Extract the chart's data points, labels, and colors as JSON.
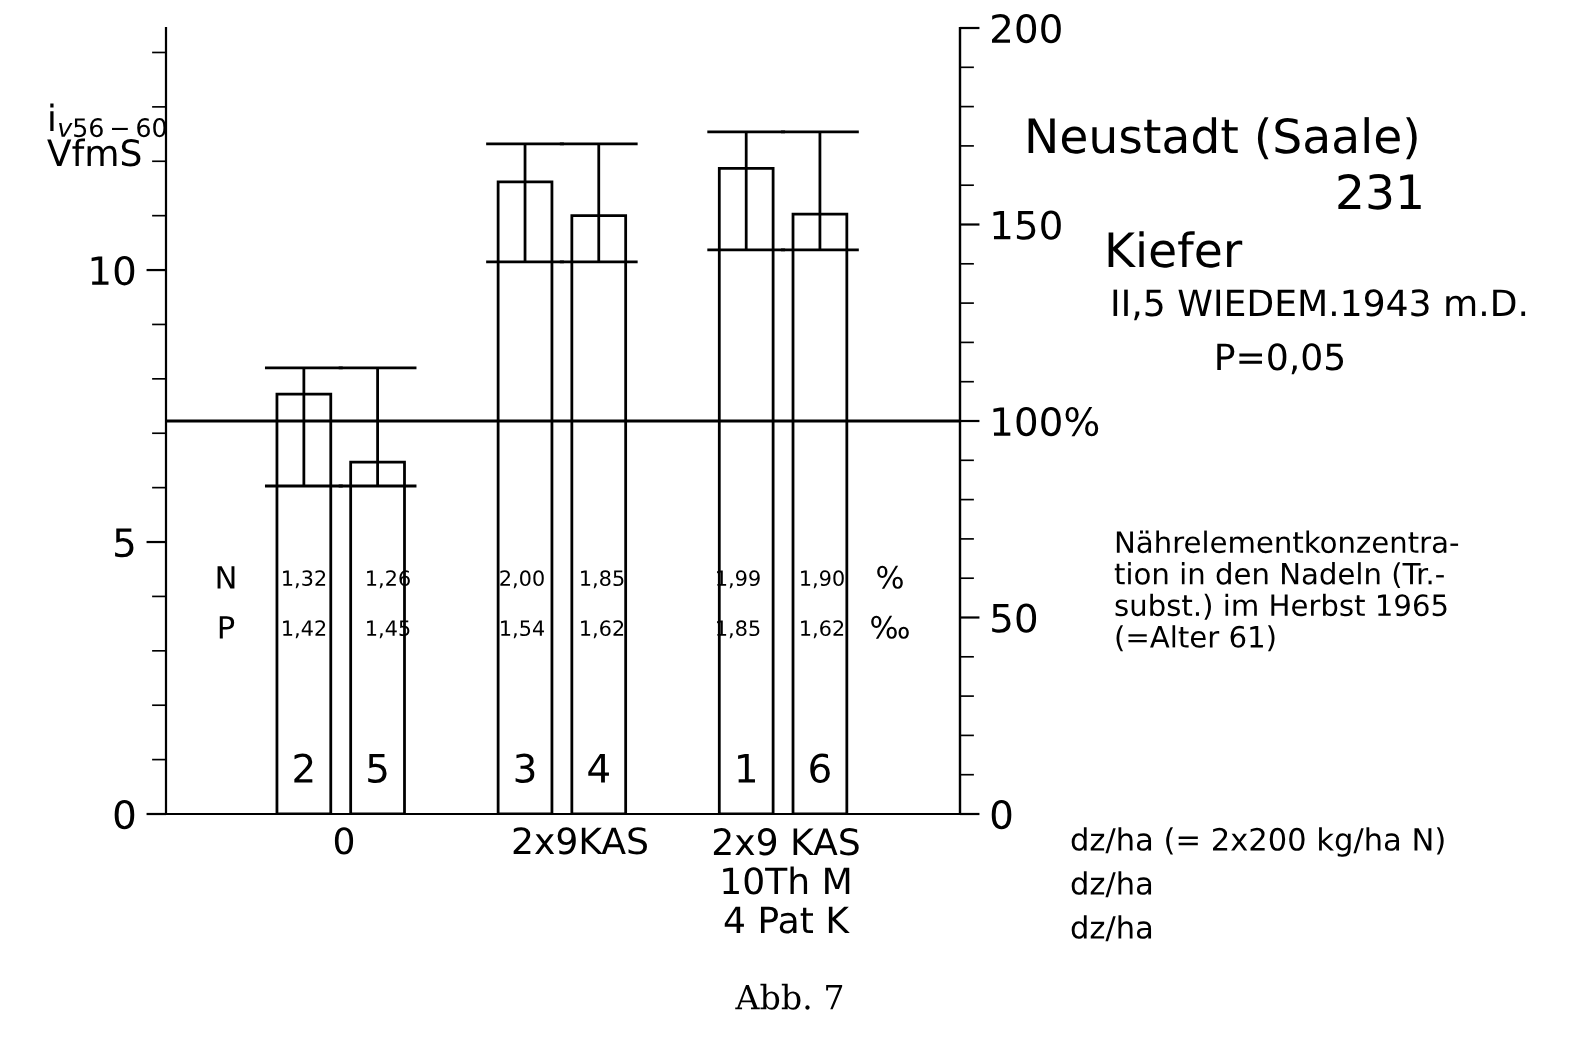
{
  "chart_data": {
    "type": "bar",
    "categories": [
      "2",
      "5",
      null,
      "3",
      "4",
      null,
      "1",
      "6"
    ],
    "values": [
      7.72,
      6.47,
      null,
      11.62,
      11.0,
      null,
      11.87,
      11.03
    ],
    "errors": [
      [
        6.03,
        8.2
      ],
      [
        6.03,
        8.2
      ],
      null,
      [
        10.15,
        12.32
      ],
      [
        10.15,
        12.32
      ],
      null,
      [
        10.37,
        12.54
      ],
      [
        10.37,
        12.54
      ]
    ],
    "color": "#ffffff",
    "ylabel": "i$_{v56−60}$\nVfmS",
    "ylim": [
      0,
      14.45
    ],
    "yticks": [
      0,
      5,
      10
    ],
    "y2lim": [
      0,
      200
    ],
    "y2ticks": [
      0,
      50,
      {
        "value": 100,
        "label": "100%"
      },
      150,
      200
    ],
    "ref_lines": [
      {
        "axis": "y2",
        "value": 100,
        "label": null,
        "color": "#000000"
      }
    ],
    "grid": false,
    "legend": false,
    "annotations": [
      "Neustadt (Saale)",
      "231",
      "Kiefer",
      "II,5 WIEDEM.1943 m.D.",
      "P=0,05",
      "Nährelementkonzentra-\ntion in den Nadeln (Tr.-\nsubst.) im Herbst 1965\n(=Alter 61)",
      "0",
      "2x9KAS",
      "2x9 KAS\n10Th M\n4 Pat K",
      "dz/ha (= 2x200 kg/ha N)",
      "dz/ha",
      "dz/ha",
      "N",
      "P",
      "1,32",
      "1,26",
      "2,00",
      "1,85",
      "1,99",
      "1,90",
      "1,42",
      "1,45",
      "1,54",
      "1,62",
      "1,85",
      "1,62",
      "%",
      "‰",
      "Abb. 7"
    ]
  }
}
